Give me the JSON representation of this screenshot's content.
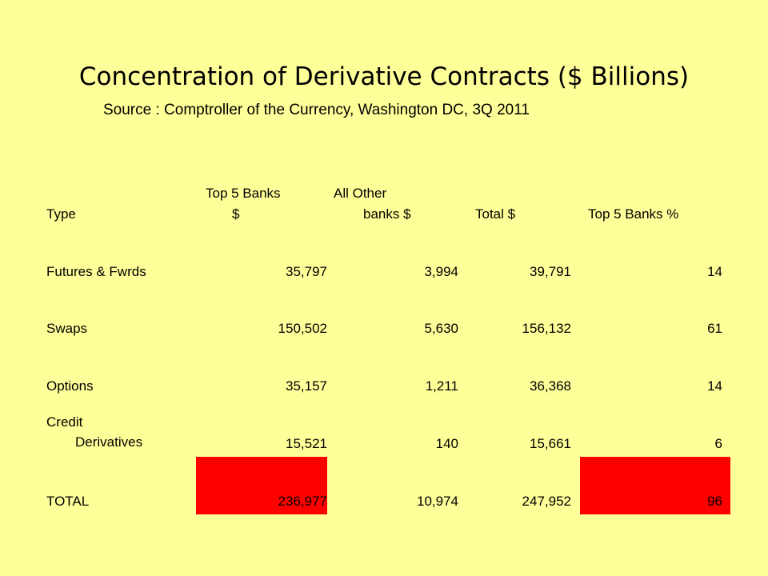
{
  "slide": {
    "title": "Concentration of Derivative Contracts ($ Billions)",
    "subtitle": "Source : Comptroller of the Currency, Washington DC, 3Q 2011"
  },
  "table": {
    "columns": [
      {
        "line1": "Type",
        "line2": ""
      },
      {
        "line1": "Top 5 Banks",
        "line2": "$"
      },
      {
        "line1": "All Other",
        "line2": "banks $"
      },
      {
        "line1": "Total $",
        "line2": ""
      },
      {
        "line1": "Top 5 Banks %",
        "line2": ""
      }
    ],
    "rows": [
      {
        "type_line1": "Futures & Fwrds",
        "type_line2": "",
        "top5": "35,797",
        "other": "3,994",
        "total": "39,791",
        "pct": "14"
      },
      {
        "type_line1": "Swaps",
        "type_line2": "",
        "top5": "150,502",
        "other": "5,630",
        "total": "156,132",
        "pct": "61"
      },
      {
        "type_line1": "Options",
        "type_line2": "",
        "top5": "35,157",
        "other": "1,211",
        "total": "36,368",
        "pct": "14"
      },
      {
        "type_line1": "Credit",
        "type_line2": "Derivatives",
        "top5": "15,521",
        "other": "140",
        "total": "15,661",
        "pct": "6"
      },
      {
        "type_line1": "TOTAL",
        "type_line2": "",
        "top5": "236,977",
        "other": "10,974",
        "total": "247,952",
        "pct": "96"
      }
    ],
    "highlight_color": "#FF0000"
  },
  "colors": {
    "background": "#FFFF99",
    "text": "#000000"
  }
}
